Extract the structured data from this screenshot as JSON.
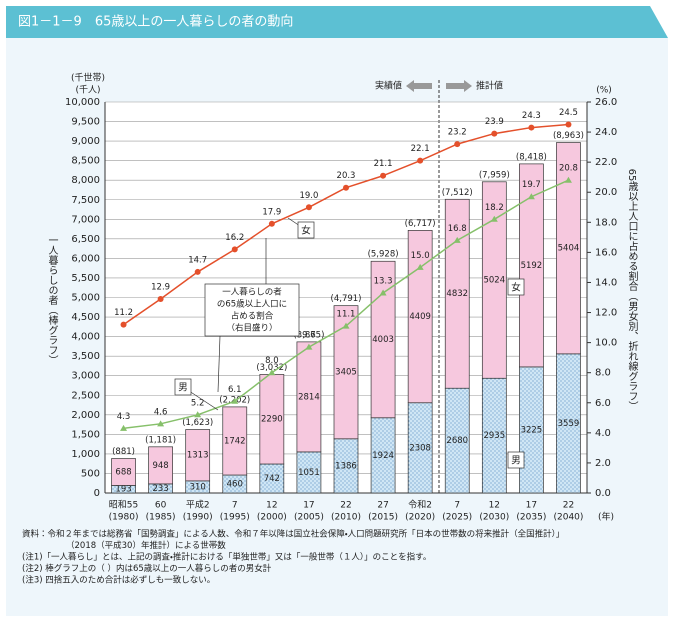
{
  "chart_data": {
    "type": "bar",
    "title": "図1－1－9　65歳以上の一人暮らしの者の動向",
    "y_unit_label": [
      "(千世帯)",
      "(千人)"
    ],
    "y2_unit_label": "(%)",
    "x_unit_label": "(年)",
    "y_axis_title": "一人暮らしの者（棒グラフ）",
    "y2_axis_title": "65歳以上人口に占める割合（男女別、折れ線グラフ）",
    "actual_label": "実績値",
    "projected_label": "推計値",
    "callout": [
      "一人暮らしの者",
      "の65歳以上人口に",
      "占める割合",
      "（右目盛り）"
    ],
    "categories": [
      "昭和55",
      "60",
      "平成2",
      "7",
      "12",
      "17",
      "22",
      "27",
      "令和2",
      "7",
      "12",
      "17",
      "22"
    ],
    "category_years": [
      "(1980)",
      "(1985)",
      "(1990)",
      "(1995)",
      "(2000)",
      "(2005)",
      "(2010)",
      "(2015)",
      "(2020)",
      "(2025)",
      "(2030)",
      "(2035)",
      "(2040)"
    ],
    "series": [
      {
        "name": "男",
        "type": "bar",
        "color": "#cfe6f5",
        "values": [
          193,
          233,
          310,
          460,
          742,
          1051,
          1386,
          1924,
          2308,
          2680,
          2935,
          3225,
          3559
        ]
      },
      {
        "name": "女",
        "type": "bar",
        "color": "#f6c8de",
        "values": [
          688,
          948,
          1313,
          1742,
          2290,
          2814,
          3405,
          4003,
          4409,
          4832,
          5024,
          5192,
          5404
        ]
      },
      {
        "name": "女",
        "type": "line",
        "axis": "y2",
        "marker": "circle",
        "color": "#e4502b",
        "values": [
          11.2,
          12.9,
          14.7,
          16.2,
          17.9,
          19.0,
          20.3,
          21.1,
          22.1,
          23.2,
          23.9,
          24.3,
          24.5
        ],
        "value_labels": [
          "11.2",
          "12.9",
          "14.7",
          "16.2",
          "17.9",
          "19.0",
          "20.3",
          "21.1",
          "22.1",
          "23.2",
          "23.9",
          "24.3",
          "24.5"
        ]
      },
      {
        "name": "男",
        "type": "line",
        "axis": "y2",
        "marker": "triangle",
        "color": "#86c06a",
        "values": [
          4.3,
          4.6,
          5.2,
          6.1,
          8.0,
          9.7,
          11.1,
          13.3,
          15.0,
          16.8,
          18.2,
          19.7,
          20.8
        ],
        "value_labels": [
          "4.3",
          "4.6",
          "5.2",
          "6.1",
          "8.0",
          "9.7",
          "11.1",
          "13.3",
          "15.0",
          "16.8",
          "18.2",
          "19.7",
          "20.8"
        ]
      }
    ],
    "totals": {
      "values": [
        881,
        1181,
        1623,
        2202,
        3032,
        3865,
        4791,
        5928,
        6717,
        7512,
        7959,
        8418,
        8963
      ],
      "value_labels": [
        "(881)",
        "(1,181)",
        "(1,623)",
        "(2,202)",
        "(3,032)",
        "(3,865)",
        "(4,791)",
        "(5,928)",
        "(6,717)",
        "(7,512)",
        "(7,959)",
        "(8,418)",
        "(8,963)"
      ]
    },
    "ylim": [
      0,
      10000
    ],
    "yticks": [
      0,
      500,
      {
        "value": 1000,
        "label": "1,000"
      },
      {
        "value": 1500,
        "label": "1,500"
      },
      {
        "value": 2000,
        "label": "2,000"
      },
      {
        "value": 2500,
        "label": "2,500"
      },
      {
        "value": 3000,
        "label": "3,000"
      },
      {
        "value": 3500,
        "label": "3,500"
      },
      {
        "value": 4000,
        "label": "4,000"
      },
      {
        "value": 4500,
        "label": "4,500"
      },
      {
        "value": 5000,
        "label": "5,000"
      },
      {
        "value": 5500,
        "label": "5,500"
      },
      {
        "value": 6000,
        "label": "6,000"
      },
      {
        "value": 6500,
        "label": "6,500"
      },
      {
        "value": 7000,
        "label": "7,000"
      },
      {
        "value": 7500,
        "label": "7,500"
      },
      {
        "value": 8000,
        "label": "8,000"
      },
      {
        "value": 8500,
        "label": "8,500"
      },
      {
        "value": 9000,
        "label": "9,000"
      },
      {
        "value": 9500,
        "label": "9,500"
      },
      {
        "value": 10000,
        "label": "10,000"
      }
    ],
    "y2lim": [
      0,
      26
    ],
    "y2ticks": [
      {
        "value": 0,
        "label": "0.0"
      },
      {
        "value": 2,
        "label": "2.0"
      },
      {
        "value": 4,
        "label": "4.0"
      },
      {
        "value": 6,
        "label": "6.0"
      },
      {
        "value": 8,
        "label": "8.0"
      },
      {
        "value": 10,
        "label": "10.0"
      },
      {
        "value": 12,
        "label": "12.0"
      },
      {
        "value": 14,
        "label": "14.0"
      },
      {
        "value": 16,
        "label": "16.0"
      },
      {
        "value": 18,
        "label": "18.0"
      },
      {
        "value": 20,
        "label": "20.0"
      },
      {
        "value": 22,
        "label": "22.0"
      },
      {
        "value": 24,
        "label": "24.0"
      },
      {
        "value": 26,
        "label": "26.0"
      }
    ],
    "grid": true,
    "notes": [
      "資料：令和２年までは総務省「国勢調査」による人数、令和７年以降は国立社会保障・人口問題研究所「日本の世帯数の将来推計（全国推計）」",
      "（2018（平成30）年推計）による世帯数",
      "(注1)「一人暮らし」とは、上記の調査・推計における「単独世帯」又は「一般世帯（１人）」のことを指す。",
      "(注2) 棒グラフ上の（ ）内は65歳以上の一人暮らしの者の男女計",
      "(注3) 四捨五入のため合計は必ずしも一致しない。"
    ]
  }
}
